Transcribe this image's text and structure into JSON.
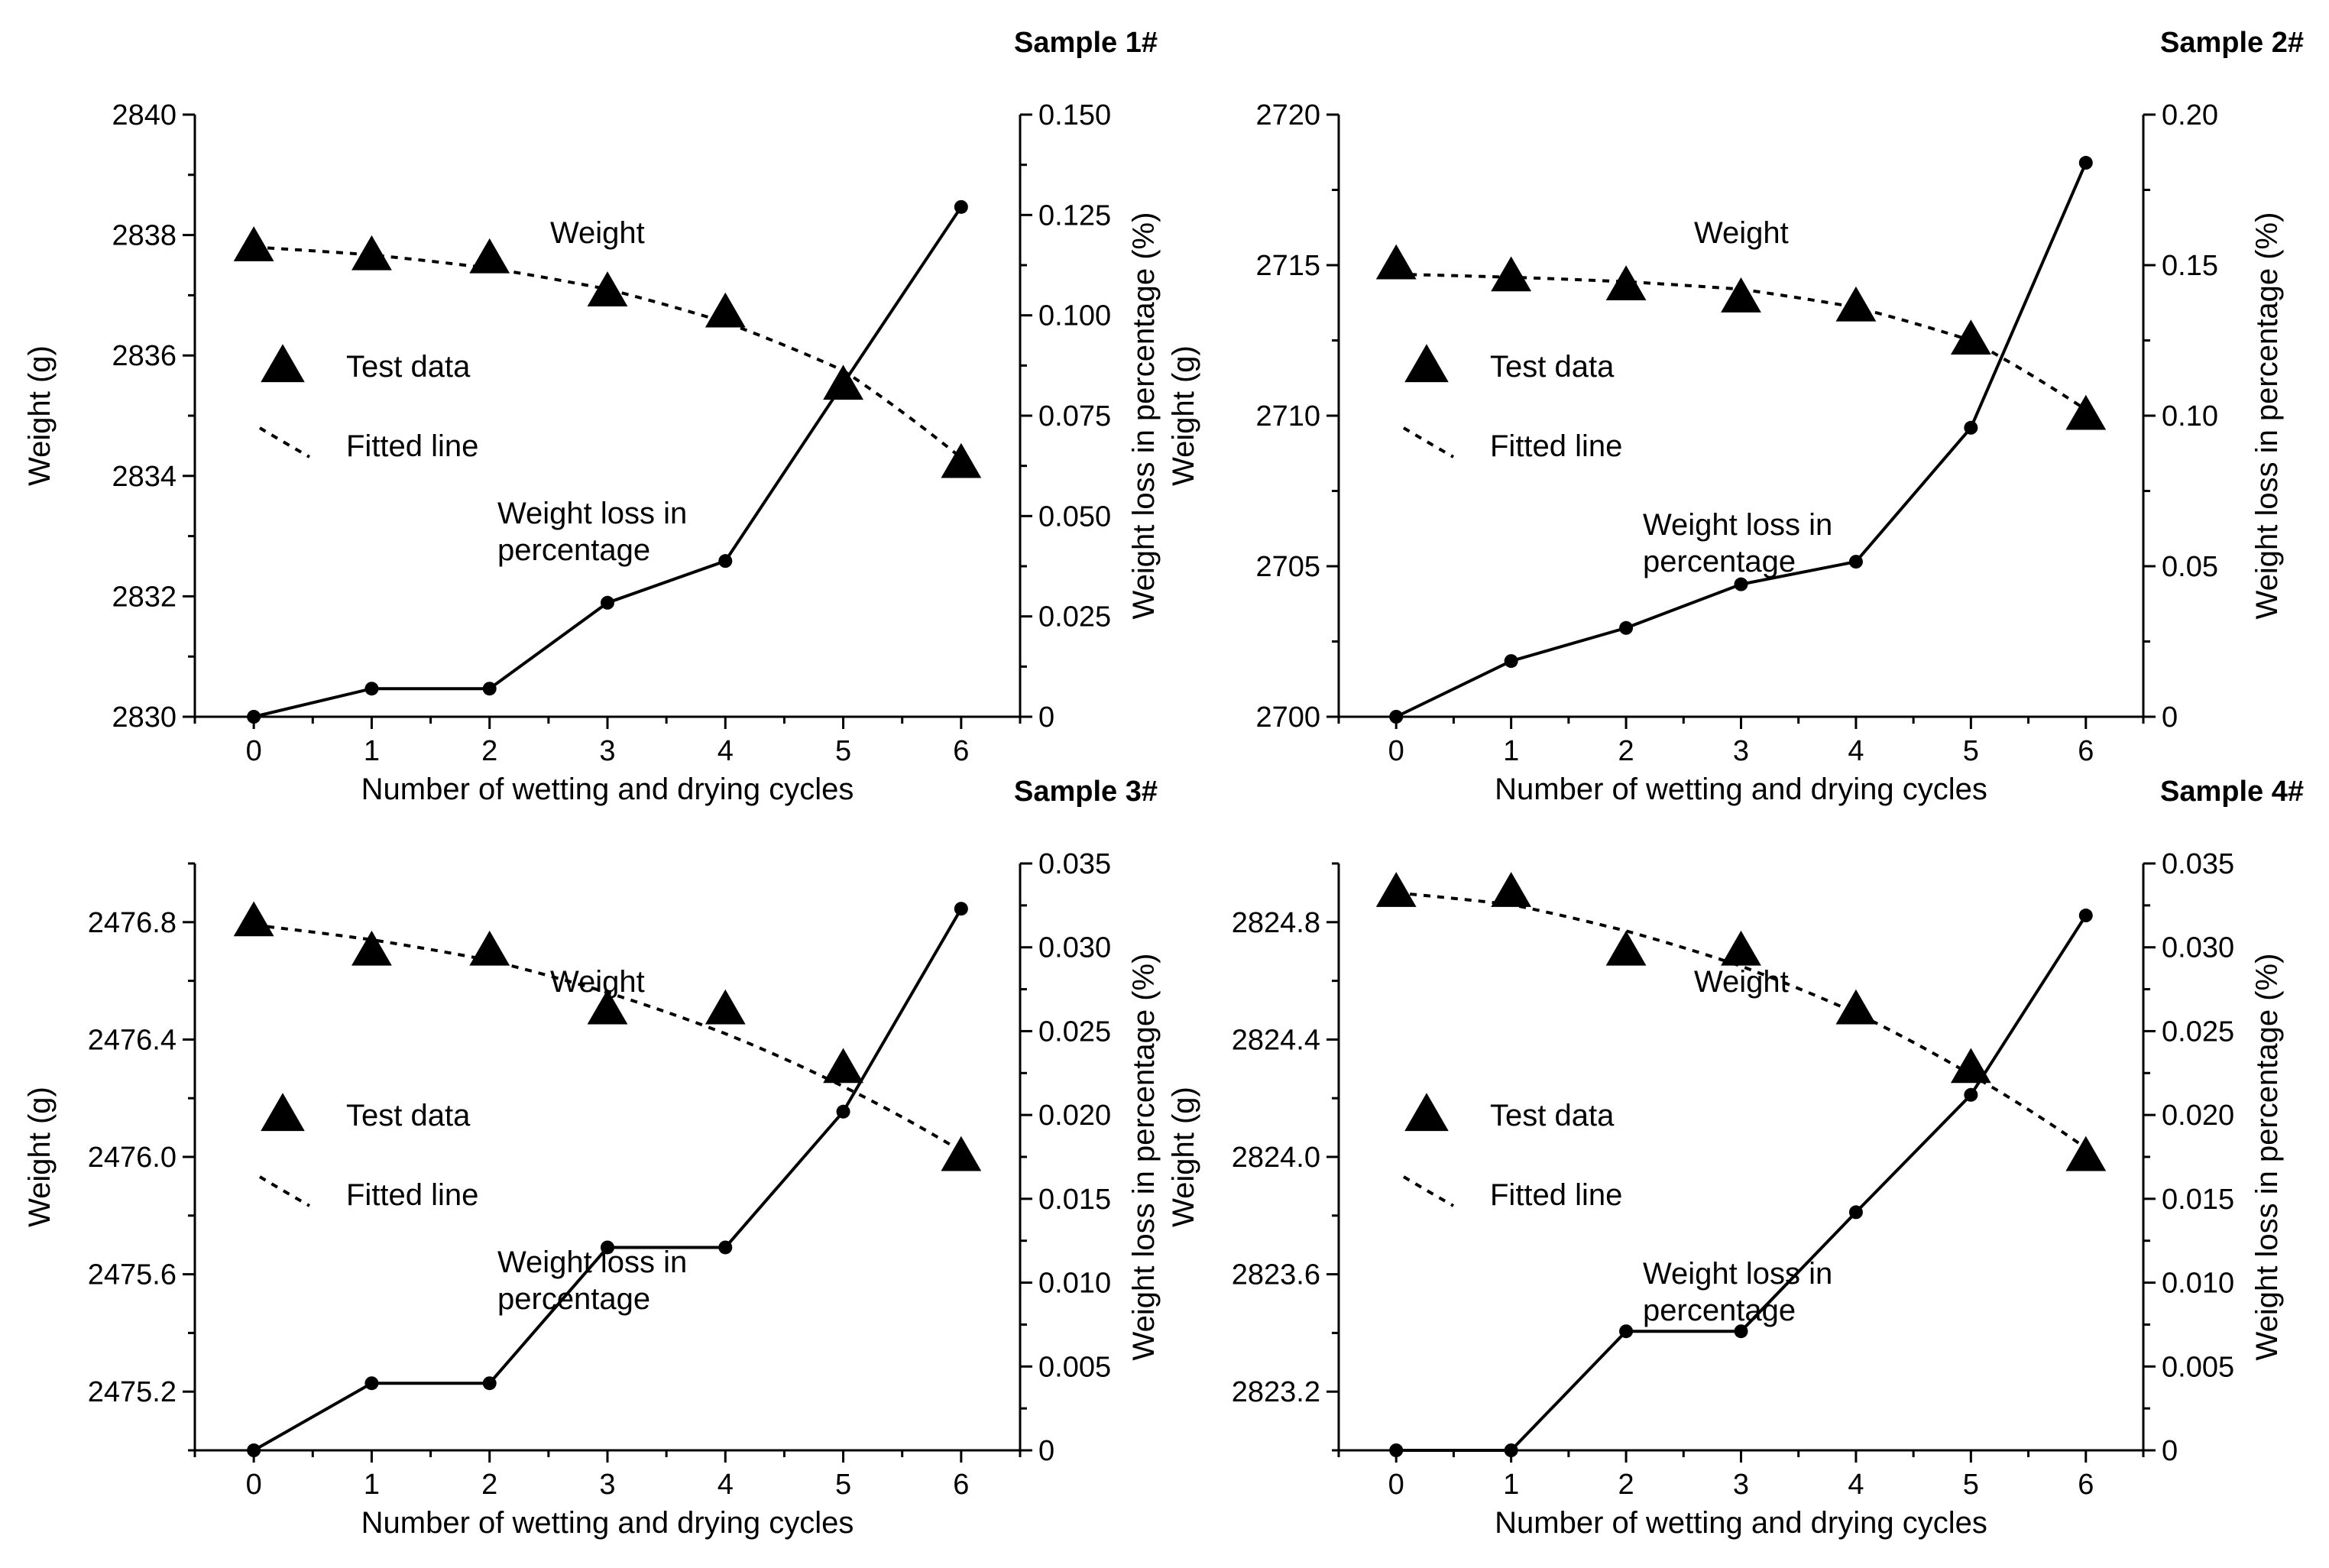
{
  "chart_data": [
    {
      "type": "line",
      "title": "Sample 1#",
      "xlabel": "Number of wetting and drying cycles",
      "ylabel": "Weight (g)",
      "y2label": "Weight loss in percentage (%)",
      "x": [
        0,
        1,
        2,
        3,
        4,
        5,
        6
      ],
      "xlim": [
        -0.5,
        6.5
      ],
      "ylim": [
        2830,
        2840
      ],
      "yticks": [
        2830,
        2832,
        2834,
        2836,
        2838,
        2840
      ],
      "ytick_labels": [
        "2830",
        "2832",
        "2834",
        "2836",
        "2838",
        "2840"
      ],
      "y2lim": [
        0,
        0.15
      ],
      "y2ticks": [
        0,
        0.025,
        0.05,
        0.075,
        0.1,
        0.125,
        0.15
      ],
      "y2tick_labels": [
        "0",
        "0.025",
        "0.050",
        "0.075",
        "0.100",
        "0.125",
        "0.150"
      ],
      "weight": [
        2837.8,
        2837.65,
        2837.6,
        2837.05,
        2836.7,
        2835.5,
        2834.2
      ],
      "fitted": [
        2837.8,
        2837.67,
        2837.45,
        2837.1,
        2836.55,
        2835.75,
        2834.3
      ],
      "weight_loss": [
        0,
        0.007,
        0.007,
        0.0284,
        0.0388,
        0.083,
        0.127
      ],
      "annotations": {
        "weight": "Weight",
        "loss_line1": "Weight loss in",
        "loss_line2": "percentage"
      },
      "legend": {
        "test_data": "Test data",
        "fitted_line": "Fitted line"
      },
      "grid": false
    },
    {
      "type": "line",
      "title": "Sample 2#",
      "xlabel": "Number of wetting and drying cycles",
      "ylabel": "Weight (g)",
      "y2label": "Weight loss in percentage (%)",
      "x": [
        0,
        1,
        2,
        3,
        4,
        5,
        6
      ],
      "xlim": [
        -0.5,
        6.5
      ],
      "ylim": [
        2700,
        2720
      ],
      "yticks": [
        2700,
        2705,
        2710,
        2715,
        2720
      ],
      "ytick_labels": [
        "2700",
        "2705",
        "2710",
        "2715",
        "2720"
      ],
      "y2lim": [
        0,
        0.2
      ],
      "y2ticks": [
        0,
        0.05,
        0.1,
        0.15,
        0.2
      ],
      "y2tick_labels": [
        "0",
        "0.05",
        "0.10",
        "0.15",
        "0.20"
      ],
      "weight": [
        2715.0,
        2714.6,
        2714.3,
        2713.9,
        2713.6,
        2712.5,
        2710.0
      ],
      "fitted": [
        2714.7,
        2714.6,
        2714.45,
        2714.2,
        2713.6,
        2712.5,
        2710.2
      ],
      "weight_loss": [
        0,
        0.0185,
        0.0295,
        0.044,
        0.0515,
        0.096,
        0.184
      ],
      "annotations": {
        "weight": "Weight",
        "loss_line1": "Weight loss in",
        "loss_line2": "percentage"
      },
      "legend": {
        "test_data": "Test data",
        "fitted_line": "Fitted line"
      },
      "grid": false
    },
    {
      "type": "line",
      "title": "Sample 3#",
      "xlabel": "Number of wetting and drying cycles",
      "ylabel": "Weight (g)",
      "y2label": "Weight loss in percentage (%)",
      "x": [
        0,
        1,
        2,
        3,
        4,
        5,
        6
      ],
      "xlim": [
        -0.5,
        6.5
      ],
      "ylim": [
        2475.0,
        2477.0
      ],
      "yticks": [
        2475.2,
        2475.6,
        2476.0,
        2476.4,
        2476.8
      ],
      "ytick_labels": [
        "2475.2",
        "2475.6",
        "2476.0",
        "2476.4",
        "2476.8"
      ],
      "y2lim": [
        0,
        0.035
      ],
      "y2ticks": [
        0,
        0.005,
        0.01,
        0.015,
        0.02,
        0.025,
        0.03,
        0.035
      ],
      "y2tick_labels": [
        "0",
        "0.005",
        "0.010",
        "0.015",
        "0.020",
        "0.025",
        "0.030",
        "0.035"
      ],
      "weight": [
        2476.8,
        2476.7,
        2476.7,
        2476.5,
        2476.5,
        2476.3,
        2476.0
      ],
      "fitted": [
        2476.79,
        2476.74,
        2476.67,
        2476.56,
        2476.42,
        2476.24,
        2476.02
      ],
      "weight_loss": [
        0,
        0.004,
        0.004,
        0.0121,
        0.0121,
        0.0202,
        0.0323
      ],
      "annotations": {
        "weight": "Weight",
        "loss_line1": "Weight loss in",
        "loss_line2": "percentage"
      },
      "legend": {
        "test_data": "Test data",
        "fitted_line": "Fitted line"
      },
      "grid": false
    },
    {
      "type": "line",
      "title": "Sample 4#",
      "xlabel": "Number of wetting and drying cycles",
      "ylabel": "Weight (g)",
      "y2label": "Weight loss in percentage (%)",
      "x": [
        0,
        1,
        2,
        3,
        4,
        5,
        6
      ],
      "xlim": [
        -0.5,
        6.5
      ],
      "ylim": [
        2823.0,
        2825.0
      ],
      "yticks": [
        2823.2,
        2823.6,
        2824.0,
        2824.4,
        2824.8
      ],
      "ytick_labels": [
        "2823.2",
        "2823.6",
        "2824.0",
        "2824.4",
        "2824.8"
      ],
      "y2lim": [
        0,
        0.035
      ],
      "y2ticks": [
        0,
        0.005,
        0.01,
        0.015,
        0.02,
        0.025,
        0.03,
        0.035
      ],
      "y2tick_labels": [
        "0",
        "0.005",
        "0.010",
        "0.015",
        "0.020",
        "0.025",
        "0.030",
        "0.035"
      ],
      "weight": [
        2824.9,
        2824.9,
        2824.7,
        2824.7,
        2824.5,
        2824.3,
        2824.0
      ],
      "fitted": [
        2824.9,
        2824.86,
        2824.77,
        2824.65,
        2824.49,
        2824.28,
        2824.03
      ],
      "weight_loss": [
        0,
        0,
        0.0071,
        0.0071,
        0.0142,
        0.0212,
        0.0319
      ],
      "annotations": {
        "weight": "Weight",
        "loss_line1": "Weight loss in",
        "loss_line2": "percentage"
      },
      "legend": {
        "test_data": "Test data",
        "fitted_line": "Fitted line"
      },
      "grid": false
    }
  ]
}
